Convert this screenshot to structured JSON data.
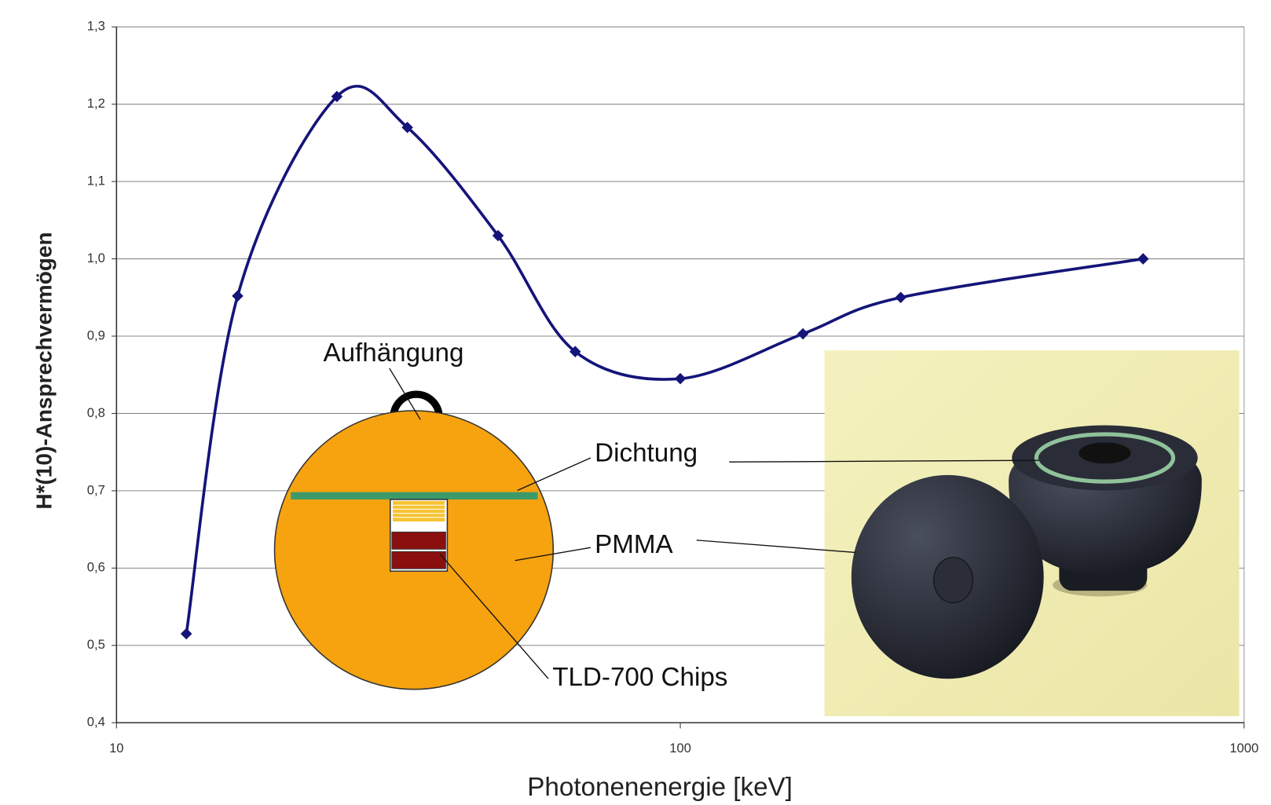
{
  "chart_data": {
    "type": "line",
    "xlabel": "Photonenenergie [keV]",
    "ylabel": "H*(10)-Ansprechvermögen",
    "x": [
      13.3,
      16.4,
      24.6,
      32.8,
      47.5,
      65.1,
      100,
      165,
      246,
      662
    ],
    "series": [
      {
        "color": "#14147a",
        "values": [
          0.515,
          0.952,
          1.21,
          1.17,
          1.03,
          0.88,
          0.845,
          0.903,
          0.95,
          1.0
        ]
      }
    ],
    "xlim": [
      10,
      1000
    ],
    "xticks": [
      10,
      100,
      1000
    ],
    "xscale": "log",
    "ylim": [
      0.4,
      1.3
    ],
    "yticks": [
      {
        "value": 0.4,
        "label": "0,4"
      },
      {
        "value": 0.5,
        "label": "0,5"
      },
      {
        "value": 0.6,
        "label": "0,6"
      },
      {
        "value": 0.7,
        "label": "0,7"
      },
      {
        "value": 0.8,
        "label": "0,8"
      },
      {
        "value": 0.9,
        "label": "0,9"
      },
      {
        "value": 1.0,
        "label": "1,0"
      },
      {
        "value": 1.1,
        "label": "1,1"
      },
      {
        "value": 1.2,
        "label": "1,2"
      },
      {
        "value": 1.3,
        "label": "1,3"
      }
    ],
    "grid": true,
    "annotations": [
      "Aufhängung",
      "Dichtung",
      "PMMA",
      "TLD-700 Chips"
    ]
  }
}
